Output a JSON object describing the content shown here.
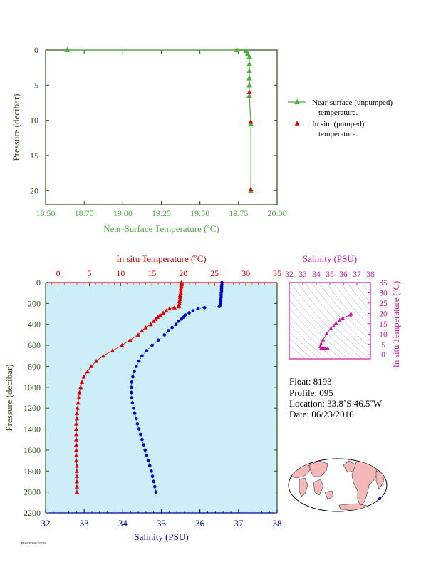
{
  "colors": {
    "near_surface": "#4caf3e",
    "in_situ": "#e00000",
    "salinity_axis": "#00008b",
    "salinity_top": "#d0159a",
    "bottom_bg": "#cdeef8",
    "dark_axis": "#2e4e1a",
    "land": "#f5b8b8",
    "map_bg": "#ffffff"
  },
  "top_chart": {
    "xlabel": "Near-Surface Temperature (˚C)",
    "ylabel": "Pressure (decibar)",
    "xticks": [
      "18.50",
      "18.75",
      "19.00",
      "19.25",
      "19.50",
      "19.75",
      "20.00"
    ],
    "yticks": [
      "0",
      "5",
      "10",
      "15",
      "20"
    ],
    "legend": [
      {
        "line1": "Near-surface (unpumped)",
        "line2": "temperature."
      },
      {
        "line1": "In situ (pumped)",
        "line2": "temperature."
      }
    ]
  },
  "bottom_chart": {
    "top_xlabel": "In situ Temperature (˚C)",
    "bottom_xlabel": "Salinity (PSU)",
    "ylabel": "Pressure (decibar)",
    "top_xticks": [
      "0",
      "5",
      "10",
      "15",
      "20",
      "25",
      "30",
      "35"
    ],
    "bottom_xticks": [
      "32",
      "33",
      "34",
      "35",
      "36",
      "37",
      "38"
    ],
    "yticks": [
      "0",
      "200",
      "400",
      "600",
      "800",
      "1000",
      "1200",
      "1400",
      "1600",
      "1800",
      "2000",
      "2200"
    ]
  },
  "ts_chart": {
    "xlabel": "Salinity (PSU)",
    "ylabel": "In situ Temperature (˚C)",
    "xticks": [
      "32",
      "33",
      "34",
      "35",
      "36",
      "37",
      "38"
    ],
    "yticks": [
      "0",
      "5",
      "10",
      "15",
      "20",
      "25",
      "30",
      "35"
    ]
  },
  "float_info": {
    "float": "Float:  8193",
    "profile": "Profile:  095",
    "location": "Location:  33.8˚S  46.5˚W",
    "date": "Date:  06/23/2016"
  },
  "footer": "PRINTED 06/23/2016",
  "chart_data": [
    {
      "type": "line",
      "xlabel": "Near-Surface Temperature (˚C)",
      "ylabel": "Pressure (decibar)",
      "xlim": [
        18.5,
        20.0
      ],
      "ylim": [
        22,
        0
      ],
      "series": [
        {
          "name": "Near-surface (unpumped) temperature.",
          "points": [
            [
              18.64,
              0.0
            ],
            [
              19.74,
              0.0
            ],
            [
              19.8,
              0.1
            ],
            [
              19.81,
              0.5
            ],
            [
              19.82,
              1.0
            ],
            [
              19.82,
              2.0
            ],
            [
              19.82,
              3.0
            ],
            [
              19.82,
              4.0
            ],
            [
              19.82,
              5.0
            ],
            [
              19.82,
              6.5
            ],
            [
              19.83,
              10.5
            ],
            [
              19.83,
              20.0
            ]
          ]
        },
        {
          "name": "In situ (pumped) temperature.",
          "points": [
            [
              19.82,
              6.0
            ],
            [
              19.83,
              10.2
            ],
            [
              19.83,
              19.8
            ]
          ]
        }
      ]
    },
    {
      "type": "scatter",
      "top_xlabel": "In situ Temperature (˚C)",
      "bottom_xlabel": "Salinity (PSU)",
      "ylabel": "Pressure (decibar)",
      "temp_xlim": [
        -2,
        35
      ],
      "sal_xlim": [
        32,
        38
      ],
      "ylim": [
        2200,
        0
      ],
      "series": [
        {
          "name": "In situ Temperature (˚C)",
          "points": [
            [
              19.7,
              0
            ],
            [
              19.7,
              20
            ],
            [
              19.7,
              40
            ],
            [
              19.6,
              60
            ],
            [
              19.6,
              80
            ],
            [
              19.6,
              100
            ],
            [
              19.5,
              120
            ],
            [
              19.5,
              140
            ],
            [
              19.5,
              160
            ],
            [
              19.4,
              180
            ],
            [
              19.4,
              200
            ],
            [
              19.3,
              220
            ],
            [
              19.3,
              230
            ],
            [
              18.6,
              240
            ],
            [
              17.8,
              250
            ],
            [
              17.3,
              270
            ],
            [
              16.8,
              290
            ],
            [
              16.3,
              310
            ],
            [
              15.9,
              330
            ],
            [
              15.6,
              350
            ],
            [
              15.3,
              370
            ],
            [
              14.8,
              400
            ],
            [
              14.0,
              430
            ],
            [
              13.4,
              460
            ],
            [
              12.8,
              500
            ],
            [
              11.5,
              550
            ],
            [
              10.2,
              600
            ],
            [
              8.7,
              650
            ],
            [
              7.2,
              700
            ],
            [
              6.1,
              750
            ],
            [
              5.3,
              800
            ],
            [
              4.7,
              850
            ],
            [
              4.1,
              900
            ],
            [
              3.8,
              950
            ],
            [
              3.6,
              1000
            ],
            [
              3.4,
              1050
            ],
            [
              3.3,
              1100
            ],
            [
              3.2,
              1150
            ],
            [
              3.1,
              1200
            ],
            [
              3.0,
              1250
            ],
            [
              3.0,
              1300
            ],
            [
              2.9,
              1350
            ],
            [
              2.9,
              1400
            ],
            [
              2.9,
              1450
            ],
            [
              2.9,
              1500
            ],
            [
              2.9,
              1550
            ],
            [
              2.9,
              1600
            ],
            [
              2.9,
              1650
            ],
            [
              2.9,
              1700
            ],
            [
              3.0,
              1750
            ],
            [
              3.0,
              1800
            ],
            [
              3.0,
              1850
            ],
            [
              3.0,
              1900
            ],
            [
              3.0,
              1950
            ],
            [
              3.0,
              2000
            ]
          ]
        },
        {
          "name": "Salinity (PSU)",
          "points": [
            [
              36.57,
              0
            ],
            [
              36.57,
              20
            ],
            [
              36.56,
              40
            ],
            [
              36.56,
              60
            ],
            [
              36.56,
              80
            ],
            [
              36.55,
              100
            ],
            [
              36.55,
              120
            ],
            [
              36.55,
              140
            ],
            [
              36.54,
              160
            ],
            [
              36.54,
              180
            ],
            [
              36.53,
              200
            ],
            [
              36.52,
              220
            ],
            [
              36.5,
              230
            ],
            [
              36.12,
              240
            ],
            [
              35.95,
              250
            ],
            [
              35.82,
              270
            ],
            [
              35.72,
              290
            ],
            [
              35.62,
              310
            ],
            [
              35.58,
              330
            ],
            [
              35.52,
              350
            ],
            [
              35.45,
              370
            ],
            [
              35.38,
              400
            ],
            [
              35.28,
              430
            ],
            [
              35.18,
              460
            ],
            [
              35.08,
              500
            ],
            [
              34.92,
              550
            ],
            [
              34.76,
              600
            ],
            [
              34.62,
              650
            ],
            [
              34.5,
              700
            ],
            [
              34.42,
              750
            ],
            [
              34.35,
              800
            ],
            [
              34.3,
              850
            ],
            [
              34.26,
              900
            ],
            [
              34.23,
              950
            ],
            [
              34.22,
              1000
            ],
            [
              34.22,
              1050
            ],
            [
              34.23,
              1100
            ],
            [
              34.25,
              1150
            ],
            [
              34.28,
              1200
            ],
            [
              34.31,
              1250
            ],
            [
              34.35,
              1300
            ],
            [
              34.38,
              1350
            ],
            [
              34.42,
              1400
            ],
            [
              34.46,
              1450
            ],
            [
              34.5,
              1500
            ],
            [
              34.54,
              1550
            ],
            [
              34.58,
              1600
            ],
            [
              34.62,
              1650
            ],
            [
              34.66,
              1700
            ],
            [
              34.7,
              1750
            ],
            [
              34.74,
              1800
            ],
            [
              34.77,
              1850
            ],
            [
              34.8,
              1900
            ],
            [
              34.83,
              1950
            ],
            [
              34.86,
              2000
            ]
          ]
        }
      ]
    },
    {
      "type": "scatter",
      "xlabel": "Salinity (PSU)",
      "ylabel": "In situ Temperature (˚C)",
      "xlim": [
        32,
        38
      ],
      "ylim": [
        -2,
        35
      ],
      "series": [
        {
          "name": "T-S",
          "points": [
            [
              34.35,
              3.0
            ],
            [
              34.38,
              2.9
            ],
            [
              34.45,
              2.9
            ],
            [
              34.55,
              2.9
            ],
            [
              34.7,
              3.0
            ],
            [
              34.85,
              3.0
            ],
            [
              34.3,
              4.0
            ],
            [
              34.35,
              5.3
            ],
            [
              34.5,
              7.2
            ],
            [
              34.76,
              10.2
            ],
            [
              35.08,
              12.8
            ],
            [
              35.28,
              14.0
            ],
            [
              35.45,
              15.3
            ],
            [
              35.72,
              16.8
            ],
            [
              35.95,
              17.8
            ],
            [
              36.5,
              19.3
            ],
            [
              36.57,
              19.7
            ]
          ]
        }
      ]
    }
  ]
}
